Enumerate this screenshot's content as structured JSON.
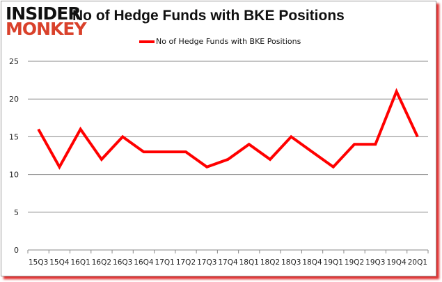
{
  "logo": {
    "line1": "INSIDER",
    "line2": "MONKEY"
  },
  "chart_data": {
    "type": "line",
    "title": "No of Hedge Funds with BKE Positions",
    "categories": [
      "15Q3",
      "15Q4",
      "16Q1",
      "16Q2",
      "16Q3",
      "16Q4",
      "17Q1",
      "17Q2",
      "17Q3",
      "17Q4",
      "18Q1",
      "18Q2",
      "18Q3",
      "18Q4",
      "19Q1",
      "19Q2",
      "19Q3",
      "19Q4",
      "20Q1"
    ],
    "series": [
      {
        "name": "No of Hedge Funds with BKE Positions",
        "color": "#ff0000",
        "values": [
          16,
          11,
          16,
          12,
          15,
          13,
          13,
          13,
          11,
          12,
          14,
          12,
          15,
          13,
          11,
          14,
          14,
          21,
          15
        ]
      }
    ],
    "ylim": [
      0,
      25
    ],
    "yticks": [
      0,
      5,
      10,
      15,
      20,
      25
    ],
    "grid": true,
    "legend": "top-center",
    "xlabel": "",
    "ylabel": ""
  }
}
